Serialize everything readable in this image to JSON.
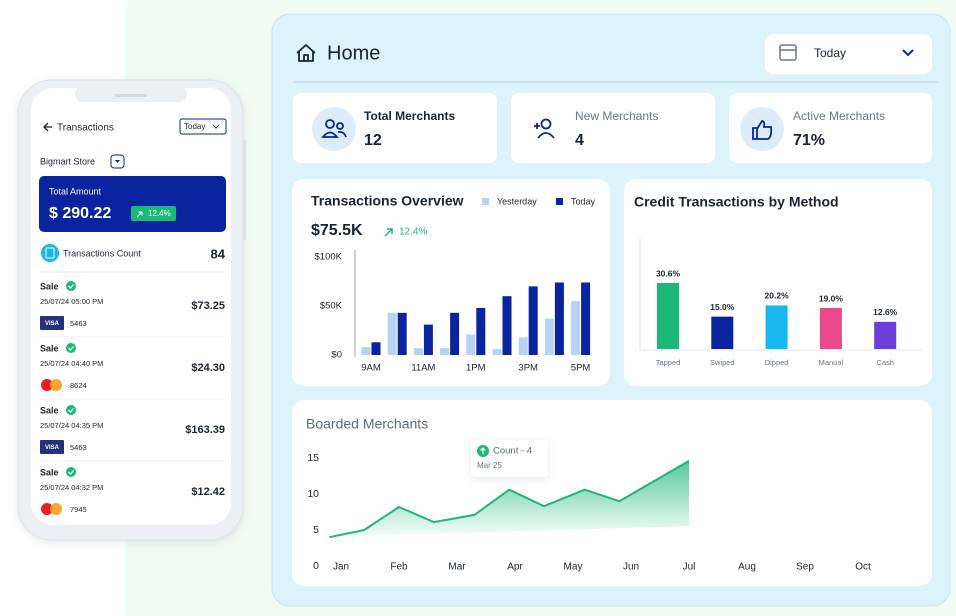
{
  "phone": {
    "title": "Transactions",
    "filter": "Today",
    "store": "Bigmart Store",
    "total_label": "Total Amount",
    "total_amount": "$ 290.22",
    "total_change": "12.4%",
    "count_label": "Transactions Count",
    "count": "84",
    "transactions": [
      {
        "type": "Sale",
        "date": "25/07/24 05:00 PM",
        "card": "VISA",
        "last4": "5463",
        "amount": "$73.25"
      },
      {
        "type": "Sale",
        "date": "25/07/24 04:40 PM",
        "last4": "8624",
        "amount": "$24.30"
      },
      {
        "type": "Sale",
        "date": "25/07/24 04:35 PM",
        "card": "VISA",
        "last4": "5463",
        "amount": "$163.39"
      },
      {
        "type": "Sale",
        "date": "25/07/24 04:32 PM",
        "last4": "7945",
        "amount": "$12.42"
      }
    ]
  },
  "header": {
    "title": "Home",
    "date_filter": "Today"
  },
  "cards": [
    {
      "label": "Total Merchants",
      "value": "12"
    },
    {
      "label": "New Merchants",
      "value": "4"
    },
    {
      "label": "Active Merchants",
      "value": "71%"
    }
  ],
  "chart_data": [
    {
      "type": "bar",
      "title": "Transactions Overview",
      "total": "$75.5K",
      "change": "12.4%",
      "categories": [
        "9AM",
        null,
        "11AM",
        null,
        "1PM",
        null,
        "3PM",
        null,
        "5PM"
      ],
      "series": [
        {
          "name": "Yesterday",
          "color": "#b8d2f4",
          "values": [
            8000,
            43000,
            7000,
            7000,
            21000,
            6000,
            18000,
            37000,
            55000
          ]
        },
        {
          "name": "Today",
          "color": "#0a239f",
          "values": [
            13000,
            43000,
            31000,
            43000,
            48000,
            60000,
            70000,
            74000,
            74000
          ]
        }
      ],
      "ylim": [
        0,
        100000
      ],
      "yticks": [
        {
          "value": 0,
          "label": "$0"
        },
        {
          "value": 50000,
          "label": "$50K"
        },
        {
          "value": 100000,
          "label": "$100K"
        }
      ]
    },
    {
      "type": "bar",
      "title": "Credit Transactions by Method",
      "categories": [
        "Tapped",
        "Swiped",
        "Dipped",
        "Manual",
        "Cash"
      ],
      "values": [
        30.6,
        15.0,
        20.2,
        19.0,
        12.6
      ],
      "value_labels": [
        "30.6%",
        "15.0%",
        "20.2%",
        "19.0%",
        "12.6%"
      ],
      "colors": [
        "#1cb877",
        "#0a239f",
        "#17b8ee",
        "#ea4a89",
        "#6a3ed8"
      ]
    },
    {
      "type": "line",
      "title": "Boarded Merchants",
      "color": "#1cb877",
      "x": [
        0.8,
        1.4,
        2,
        2.6,
        3.3,
        3.9,
        4.5,
        5.2,
        5.8,
        7
      ],
      "values": [
        4,
        5,
        8.2,
        6.1,
        7.1,
        10.6,
        8.3,
        10.6,
        9,
        14.6
      ],
      "xlim": [
        0.8,
        10
      ],
      "xticks": [
        {
          "value": 1,
          "label": "Jan"
        },
        {
          "value": 2,
          "label": "Feb"
        },
        {
          "value": 3,
          "label": "Mar"
        },
        {
          "value": 4,
          "label": "Apr"
        },
        {
          "value": 5,
          "label": "May"
        },
        {
          "value": 6,
          "label": "Jun"
        },
        {
          "value": 7,
          "label": "Jul"
        },
        {
          "value": 8,
          "label": "Aug"
        },
        {
          "value": 9,
          "label": "Sep"
        },
        {
          "value": 10,
          "label": "Oct"
        }
      ],
      "ylim": [
        0,
        15
      ],
      "yticks": [
        0,
        5,
        10,
        15
      ],
      "tooltip": {
        "title": "Count - 4",
        "subtitle": "Mar 25"
      }
    }
  ]
}
